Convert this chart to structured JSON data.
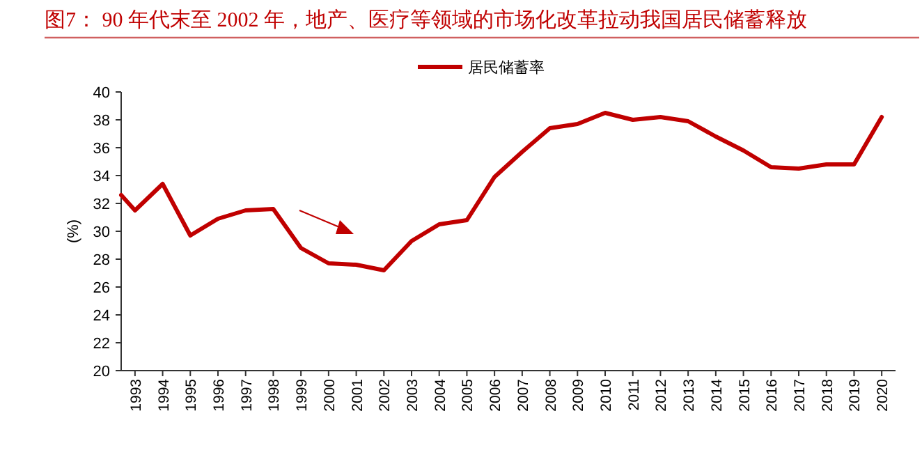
{
  "chart_data": {
    "type": "line",
    "title": "图7： 90 年代末至 2002 年，地产、医疗等领域的市场化改革拉动我国居民储蓄释放",
    "ylabel": "(%)",
    "series": [
      {
        "name": "居民储蓄率",
        "color": "#c00000",
        "x": [
          1992.5,
          1993,
          1994,
          1995,
          1996,
          1997,
          1998,
          1999,
          2000,
          2001,
          2002,
          2003,
          2004,
          2005,
          2006,
          2007,
          2008,
          2009,
          2010,
          2011,
          2012,
          2013,
          2014,
          2015,
          2016,
          2017,
          2018,
          2019,
          2020
        ],
        "values": [
          32.6,
          31.5,
          33.4,
          29.7,
          30.9,
          31.5,
          31.6,
          28.8,
          27.7,
          27.6,
          27.2,
          29.3,
          30.5,
          30.8,
          33.9,
          35.7,
          37.4,
          37.7,
          38.5,
          38.0,
          38.2,
          37.9,
          36.8,
          35.8,
          34.6,
          34.5,
          34.8,
          34.8,
          38.2
        ]
      }
    ],
    "xlim": [
      1992.5,
      2020.5
    ],
    "xticks": [
      1993,
      1994,
      1995,
      1996,
      1997,
      1998,
      1999,
      2000,
      2001,
      2002,
      2003,
      2004,
      2005,
      2006,
      2007,
      2008,
      2009,
      2010,
      2011,
      2012,
      2013,
      2014,
      2015,
      2016,
      2017,
      2018,
      2019,
      2020
    ],
    "ylim": [
      20,
      40
    ],
    "yticks": [
      20,
      22,
      24,
      26,
      28,
      30,
      32,
      34,
      36,
      38,
      40
    ],
    "legend": "top",
    "grid": false,
    "marker": "none",
    "line_style": "solid"
  }
}
